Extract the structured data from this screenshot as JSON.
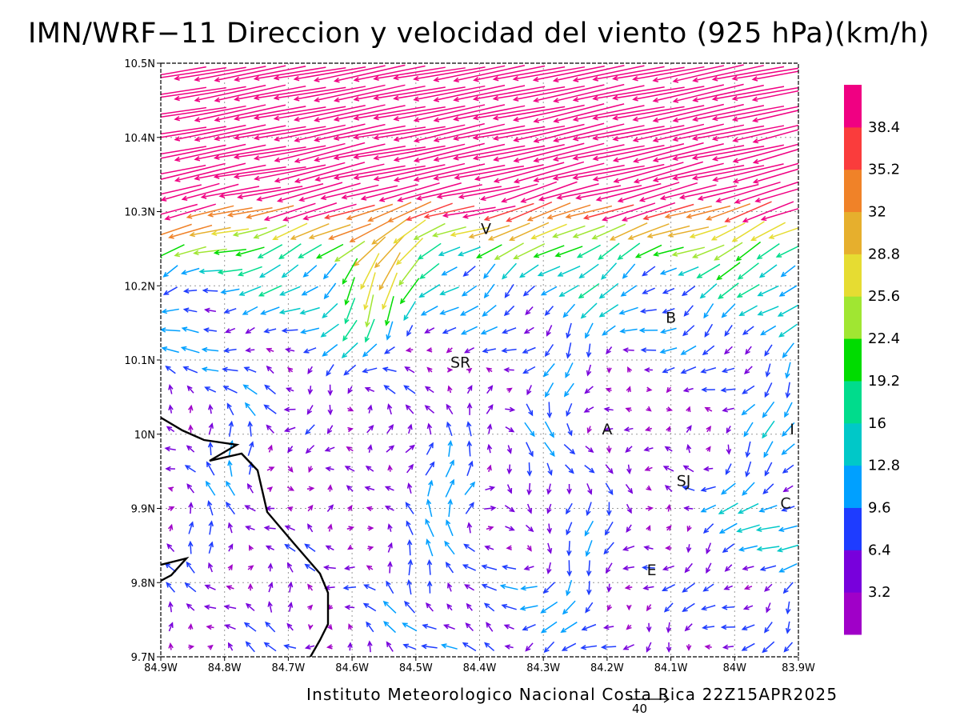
{
  "title": "IMN/WRF−11 Direccion y velocidad del viento (925 hPa)(km/h)",
  "footer": "Instituto Meteorologico Nacional Costa Rica 22Z15APR2025",
  "reference_vector": {
    "label": "40",
    "speed": 40
  },
  "map": {
    "lon_range": [
      -84.9,
      -83.9
    ],
    "lat_range": [
      9.7,
      10.5
    ],
    "grid": true,
    "x_ticks": [
      "84.9W",
      "84.8W",
      "84.7W",
      "84.6W",
      "84.5W",
      "84.4W",
      "84.3W",
      "84.2W",
      "84.1W",
      "84W",
      "83.9W"
    ],
    "y_ticks": [
      "9.7N",
      "9.8N",
      "9.9N",
      "10N",
      "10.1N",
      "10.2N",
      "10.3N",
      "10.4N",
      "10.5N"
    ],
    "cities": [
      {
        "name": "V",
        "lon": -84.39,
        "lat": 10.27
      },
      {
        "name": "B",
        "lon": -84.1,
        "lat": 10.15
      },
      {
        "name": "SR",
        "lon": -84.43,
        "lat": 10.09
      },
      {
        "name": "A",
        "lon": -84.2,
        "lat": 10.0
      },
      {
        "name": "I",
        "lon": -83.91,
        "lat": 10.0
      },
      {
        "name": "SJ",
        "lon": -84.08,
        "lat": 9.93
      },
      {
        "name": "C",
        "lon": -83.92,
        "lat": 9.9
      },
      {
        "name": "E",
        "lon": -84.13,
        "lat": 9.81
      }
    ]
  },
  "colorbar": {
    "colors": [
      "#a000c8",
      "#7800dc",
      "#1e3cff",
      "#00a0ff",
      "#00c8c8",
      "#00dc8c",
      "#00dc00",
      "#a0e632",
      "#e6dc32",
      "#e6af2d",
      "#f08228",
      "#fa3c3c",
      "#f00082"
    ],
    "labels": [
      "3.2",
      "6.4",
      "9.6",
      "12.8",
      "16",
      "19.2",
      "22.4",
      "25.6",
      "28.8",
      "32",
      "35.2",
      "38.4"
    ]
  }
}
